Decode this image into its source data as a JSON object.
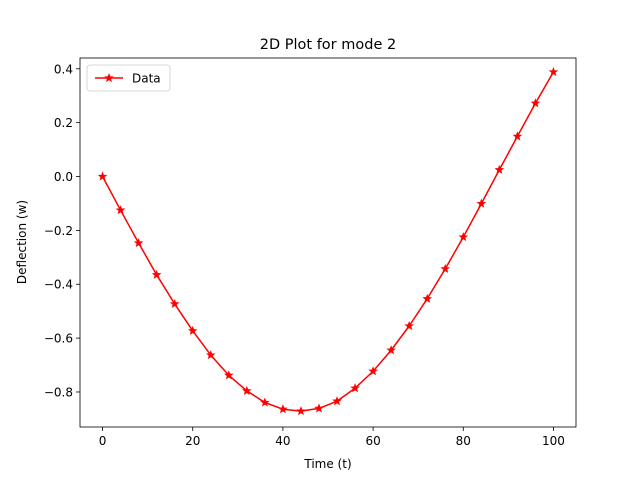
{
  "chart_data": {
    "type": "line",
    "title": "2D Plot for mode 2",
    "xlabel": "Time (t)",
    "ylabel": "Deflection (w)",
    "xlim": [
      -5,
      105
    ],
    "ylim": [
      -0.93,
      0.44
    ],
    "xticks": [
      0,
      20,
      40,
      60,
      80,
      100
    ],
    "yticks": [
      -0.8,
      -0.6,
      -0.4,
      -0.2,
      0.0,
      0.2,
      0.4
    ],
    "xtick_labels": [
      "0",
      "20",
      "40",
      "60",
      "80",
      "100"
    ],
    "ytick_labels": [
      "−0.8",
      "−0.6",
      "−0.4",
      "−0.2",
      "0.0",
      "0.2",
      "0.4"
    ],
    "legend": {
      "placement": "upper-left"
    },
    "grid": false,
    "series": [
      {
        "name": "Data",
        "color": "#ff0000",
        "marker": "star",
        "x": [
          0,
          4,
          8,
          12,
          16,
          20,
          24,
          28,
          32,
          36,
          40,
          44,
          48,
          52,
          56,
          60,
          64,
          68,
          72,
          76,
          80,
          84,
          88,
          92,
          96,
          100
        ],
        "y": [
          0.0,
          -0.125,
          -0.247,
          -0.365,
          -0.473,
          -0.573,
          -0.663,
          -0.738,
          -0.796,
          -0.839,
          -0.864,
          -0.871,
          -0.861,
          -0.834,
          -0.786,
          -0.723,
          -0.645,
          -0.555,
          -0.454,
          -0.343,
          -0.225,
          -0.101,
          0.025,
          0.149,
          0.272,
          0.388
        ]
      }
    ]
  }
}
